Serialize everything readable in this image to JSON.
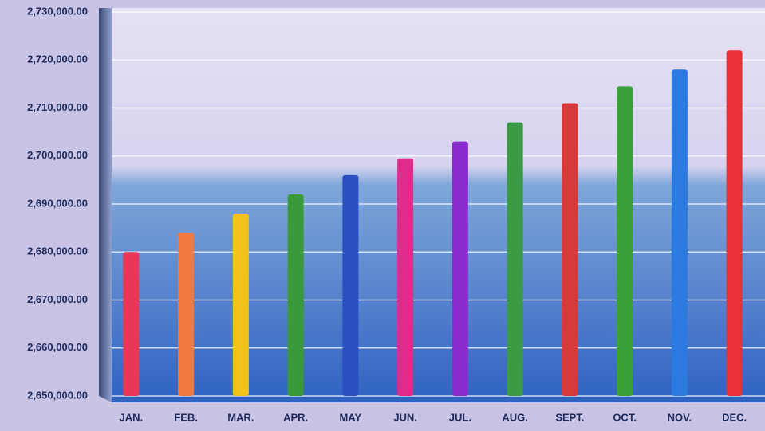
{
  "chart_data": {
    "type": "bar",
    "categories": [
      "JAN.",
      "FEB.",
      "MAR.",
      "APR.",
      "MAY",
      "JUN.",
      "JUL.",
      "AUG.",
      "SEPT.",
      "OCT.",
      "NOV.",
      "DEC."
    ],
    "values": [
      2680000,
      2684000,
      2688000,
      2692000,
      2696000,
      2699500,
      2703000,
      2707000,
      2711000,
      2714500,
      2718000,
      2722000
    ],
    "colors": [
      "#e8385a",
      "#f07a40",
      "#f2c21a",
      "#3a9a3a",
      "#2a4fc0",
      "#e02b8a",
      "#8a2bd0",
      "#3a9a45",
      "#d83a3a",
      "#3aa03a",
      "#2a7ae0",
      "#e8303a"
    ],
    "ylim": [
      2650000,
      2730000
    ],
    "yticks": [
      {
        "value": 2650000,
        "label": "2,650,000.00"
      },
      {
        "value": 2660000,
        "label": "2,660,000.00"
      },
      {
        "value": 2670000,
        "label": "2,670,000.00"
      },
      {
        "value": 2680000,
        "label": "2,680,000.00"
      },
      {
        "value": 2690000,
        "label": "2,690,000.00"
      },
      {
        "value": 2700000,
        "label": "2,700,000.00"
      },
      {
        "value": 2710000,
        "label": "2,710,000.00"
      },
      {
        "value": 2720000,
        "label": "2,720,000.00"
      },
      {
        "value": 2730000,
        "label": "2,730,000.00"
      }
    ],
    "grid": true
  }
}
